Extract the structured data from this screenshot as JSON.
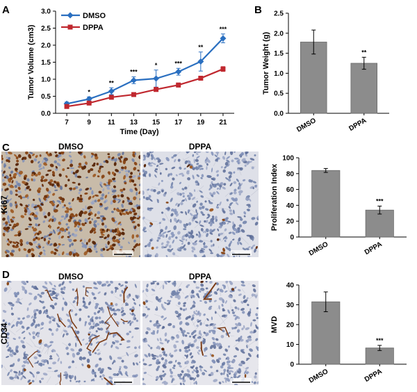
{
  "panels": {
    "A": "A",
    "B": "B",
    "C": "C",
    "D": "D"
  },
  "chart_data": [
    {
      "id": "A",
      "type": "line",
      "xlabel": "Time (Day)",
      "ylabel": "Tumor Volume (cm3)",
      "x": [
        7,
        9,
        11,
        13,
        15,
        17,
        19,
        21
      ],
      "ylim": [
        0,
        3.0
      ],
      "yticks": [
        "0.0",
        "0.5",
        "1.0",
        "1.5",
        "2.0",
        "2.5",
        "3.0"
      ],
      "legend": "top-left",
      "series": [
        {
          "name": "DMSO",
          "color": "#2a6fc0",
          "marker": "diamond",
          "values": [
            0.28,
            0.42,
            0.65,
            0.97,
            1.02,
            1.22,
            1.52,
            2.2
          ],
          "errors": [
            0.05,
            0.06,
            0.1,
            0.1,
            0.25,
            0.1,
            0.28,
            0.13
          ]
        },
        {
          "name": "DPPA",
          "color": "#c0282f",
          "marker": "square",
          "values": [
            0.2,
            0.3,
            0.47,
            0.55,
            0.7,
            0.83,
            1.03,
            1.3
          ],
          "errors": [
            0.03,
            0.04,
            0.05,
            0.05,
            0.06,
            0.06,
            0.06,
            0.07
          ]
        }
      ],
      "significance": [
        "",
        "*",
        "**",
        "***",
        "*",
        "***",
        "**",
        "***"
      ]
    },
    {
      "id": "B",
      "type": "bar",
      "ylabel": "Tumor Weight (g)",
      "categories": [
        "DMSO",
        "DPPA"
      ],
      "values": [
        1.78,
        1.25
      ],
      "errors": [
        0.3,
        0.15
      ],
      "significance": [
        "",
        "**"
      ],
      "ylim": [
        0,
        2.5
      ],
      "yticks": [
        "0.0",
        "0.5",
        "1.0",
        "1.5",
        "2.0",
        "2.5"
      ]
    },
    {
      "id": "C",
      "type": "bar",
      "ylabel": "Proliferation Index",
      "categories": [
        "DMSO",
        "DPPA"
      ],
      "values": [
        84,
        34
      ],
      "errors": [
        2.5,
        5
      ],
      "significance": [
        "",
        "***"
      ],
      "ylim": [
        0,
        100
      ],
      "yticks": [
        "0",
        "20",
        "40",
        "60",
        "80",
        "100"
      ]
    },
    {
      "id": "D",
      "type": "bar",
      "ylabel": "MVD",
      "categories": [
        "DMSO",
        "DPPA"
      ],
      "values": [
        31.5,
        8.2
      ],
      "errors": [
        5,
        1.3
      ],
      "significance": [
        "",
        "***"
      ],
      "ylim": [
        0,
        40
      ],
      "yticks": [
        "0",
        "10",
        "20",
        "30",
        "40"
      ]
    }
  ],
  "images": {
    "row_c": {
      "stain": "Ki67",
      "left": "DMSO",
      "right": "DPPA"
    },
    "row_d": {
      "stain": "CD34",
      "left": "DMSO",
      "right": "DPPA"
    }
  },
  "colors": {
    "dmso_line": "#2a6fc0",
    "dppa_line": "#c0282f",
    "bar_fill": "#8c8c8c",
    "ki67_dmso_bg": "#c3b6a6",
    "ki67_dppa_bg": "#dfe0e6",
    "cd34_bg": "#e6e6ec",
    "nucleus_blue": "#6d7fa8",
    "nucleus_brown": "#6e3512"
  }
}
